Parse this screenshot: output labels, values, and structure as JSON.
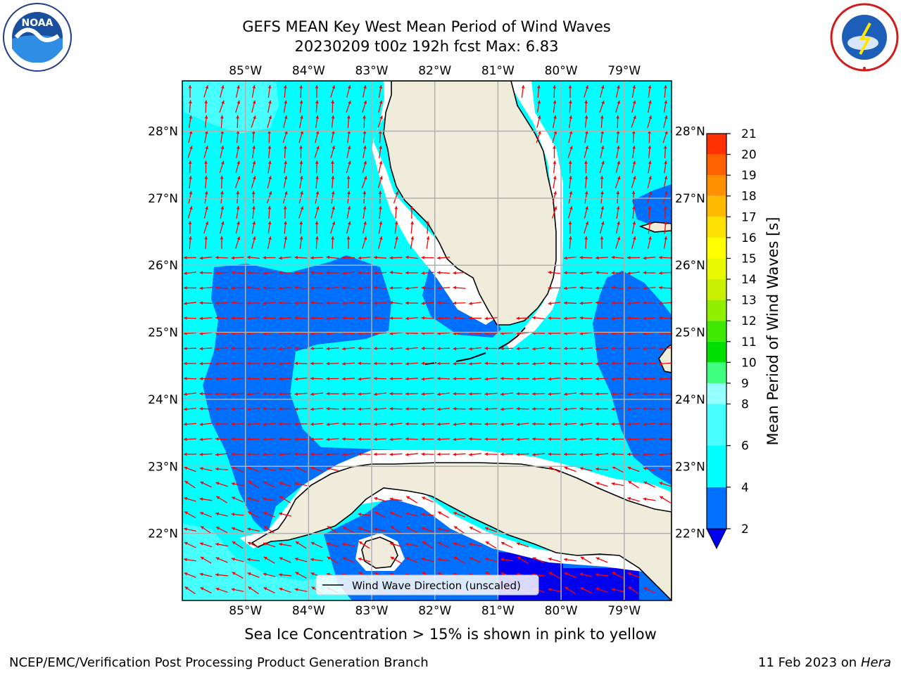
{
  "header": {
    "title_line1": "GEFS MEAN Key West Mean Period of Wind Waves",
    "title_line2": "20230209 t00z 192h fcst   Max: 6.83"
  },
  "logos": {
    "left": {
      "name": "NOAA",
      "icon": "noaa-logo"
    },
    "right": {
      "name": "National Weather Service",
      "icon": "nws-logo"
    }
  },
  "map": {
    "region": "Key West",
    "lon_ticks": [
      "85°W",
      "84°W",
      "83°W",
      "82°W",
      "81°W",
      "80°W",
      "79°W"
    ],
    "lon_values": [
      -85,
      -84,
      -83,
      -82,
      -81,
      -80,
      -79
    ],
    "lat_ticks": [
      "28°N",
      "27°N",
      "26°N",
      "25°N",
      "24°N",
      "23°N",
      "22°N"
    ],
    "lat_values": [
      28,
      27,
      26,
      25,
      24,
      23,
      22
    ],
    "extent": {
      "lon_min": -86.0,
      "lon_max": -78.25,
      "lat_min": 21.0,
      "lat_max": 28.75
    },
    "legend_label": "Wind Wave Direction (unscaled)",
    "land_color": "#efecdc",
    "ocean_default_color": "#00ffff",
    "arrow_color": "#ff0000",
    "grid": true
  },
  "colorbar": {
    "label": "Mean Period of Wind Waves [s]",
    "ticks": [
      "2",
      "4",
      "6",
      "8",
      "9",
      "10",
      "11",
      "12",
      "13",
      "14",
      "15",
      "16",
      "17",
      "18",
      "19",
      "20",
      "21"
    ],
    "boundaries": [
      2,
      4,
      6,
      8,
      9,
      10,
      11,
      12,
      13,
      14,
      15,
      16,
      17,
      18,
      19,
      20,
      21
    ],
    "colors": [
      "#0070ff",
      "#00ffff",
      "#48ffff",
      "#96ffff",
      "#40ff80",
      "#00e000",
      "#40ea00",
      "#90f000",
      "#c8f000",
      "#e8f800",
      "#ffff00",
      "#ffe000",
      "#ffbb00",
      "#ff9000",
      "#ff6000",
      "#ff3000"
    ],
    "extend_low_color": "#0000f0"
  },
  "footer": {
    "subcaption": "Sea Ice Concentration > 15% is shown in pink to yellow",
    "credit_left": "NCEP/EMC/Verification Post Processing Product Generation Branch",
    "credit_right_prefix": "11 Feb 2023 on",
    "credit_right_host": "Hera"
  }
}
